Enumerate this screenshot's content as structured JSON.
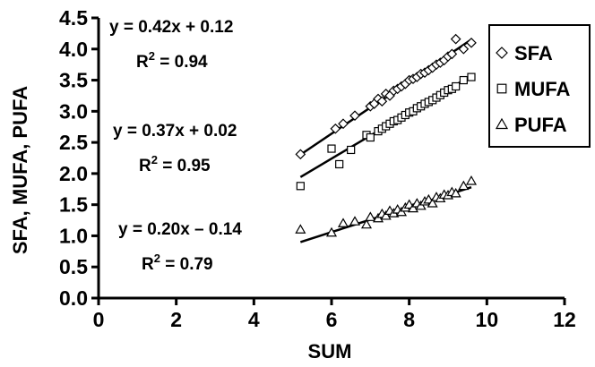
{
  "chart_data": {
    "type": "scatter",
    "title": "",
    "xlabel": "SUM",
    "ylabel": "SFA, MUFA, PUFA",
    "xlim": [
      0,
      12
    ],
    "ylim": [
      0,
      4.5
    ],
    "xticks": [
      0,
      2,
      4,
      6,
      8,
      10,
      12
    ],
    "yticks": [
      0.0,
      0.5,
      1.0,
      1.5,
      2.0,
      2.5,
      3.0,
      3.5,
      4.0,
      4.5
    ],
    "xtick_labels": [
      "0",
      "2",
      "4",
      "6",
      "8",
      "10",
      "12"
    ],
    "ytick_labels": [
      "0.0",
      "0.5",
      "1.0",
      "1.5",
      "2.0",
      "2.5",
      "3.0",
      "3.5",
      "4.0",
      "4.5"
    ],
    "grid": false,
    "legend_position": "top-right",
    "series": [
      {
        "name": "SFA",
        "marker": "diamond",
        "fit": {
          "slope": 0.42,
          "intercept": 0.12,
          "x_range": [
            5.2,
            9.6
          ]
        },
        "equation": "y = 0.42x + 0.12",
        "r2_label": "R",
        "r2_sup": "2",
        "r2_value": " = 0.94",
        "points": [
          [
            5.2,
            2.31
          ],
          [
            6.1,
            2.72
          ],
          [
            6.3,
            2.8
          ],
          [
            6.6,
            2.93
          ],
          [
            7.0,
            3.08
          ],
          [
            7.1,
            3.12
          ],
          [
            7.2,
            3.2
          ],
          [
            7.3,
            3.16
          ],
          [
            7.4,
            3.28
          ],
          [
            7.5,
            3.25
          ],
          [
            7.6,
            3.33
          ],
          [
            7.7,
            3.36
          ],
          [
            7.8,
            3.4
          ],
          [
            7.9,
            3.44
          ],
          [
            8.0,
            3.5
          ],
          [
            8.1,
            3.52
          ],
          [
            8.2,
            3.55
          ],
          [
            8.3,
            3.6
          ],
          [
            8.4,
            3.62
          ],
          [
            8.5,
            3.66
          ],
          [
            8.6,
            3.7
          ],
          [
            8.7,
            3.75
          ],
          [
            8.8,
            3.78
          ],
          [
            8.9,
            3.82
          ],
          [
            9.0,
            3.88
          ],
          [
            9.1,
            3.92
          ],
          [
            9.2,
            4.16
          ],
          [
            9.4,
            4.0
          ],
          [
            9.6,
            4.1
          ]
        ]
      },
      {
        "name": "MUFA",
        "marker": "square",
        "fit": {
          "slope": 0.37,
          "intercept": 0.02,
          "x_range": [
            5.2,
            9.6
          ]
        },
        "equation": "y = 0.37x + 0.02",
        "r2_label": "R",
        "r2_sup": "2",
        "r2_value": " = 0.95",
        "points": [
          [
            5.2,
            1.8
          ],
          [
            6.0,
            2.4
          ],
          [
            6.2,
            2.15
          ],
          [
            6.5,
            2.38
          ],
          [
            6.9,
            2.62
          ],
          [
            7.0,
            2.58
          ],
          [
            7.2,
            2.68
          ],
          [
            7.3,
            2.72
          ],
          [
            7.4,
            2.76
          ],
          [
            7.5,
            2.8
          ],
          [
            7.6,
            2.84
          ],
          [
            7.7,
            2.86
          ],
          [
            7.8,
            2.9
          ],
          [
            7.9,
            2.94
          ],
          [
            8.0,
            2.98
          ],
          [
            8.1,
            3.0
          ],
          [
            8.2,
            3.05
          ],
          [
            8.3,
            3.08
          ],
          [
            8.4,
            3.12
          ],
          [
            8.5,
            3.15
          ],
          [
            8.6,
            3.18
          ],
          [
            8.7,
            3.22
          ],
          [
            8.8,
            3.26
          ],
          [
            8.9,
            3.3
          ],
          [
            9.0,
            3.34
          ],
          [
            9.1,
            3.36
          ],
          [
            9.2,
            3.4
          ],
          [
            9.4,
            3.5
          ],
          [
            9.6,
            3.55
          ]
        ]
      },
      {
        "name": "PUFA",
        "marker": "triangle",
        "fit": {
          "slope": 0.2,
          "intercept": -0.14,
          "x_range": [
            5.2,
            9.6
          ]
        },
        "equation": "y = 0.20x – 0.14",
        "r2_label": "R",
        "r2_sup": "2",
        "r2_value": " = 0.79",
        "points": [
          [
            5.2,
            1.1
          ],
          [
            6.0,
            1.05
          ],
          [
            6.3,
            1.2
          ],
          [
            6.6,
            1.23
          ],
          [
            6.9,
            1.18
          ],
          [
            7.0,
            1.3
          ],
          [
            7.2,
            1.28
          ],
          [
            7.3,
            1.35
          ],
          [
            7.4,
            1.32
          ],
          [
            7.5,
            1.4
          ],
          [
            7.6,
            1.36
          ],
          [
            7.7,
            1.42
          ],
          [
            7.8,
            1.38
          ],
          [
            7.9,
            1.45
          ],
          [
            8.0,
            1.5
          ],
          [
            8.1,
            1.44
          ],
          [
            8.2,
            1.52
          ],
          [
            8.3,
            1.48
          ],
          [
            8.4,
            1.55
          ],
          [
            8.5,
            1.58
          ],
          [
            8.6,
            1.52
          ],
          [
            8.7,
            1.62
          ],
          [
            8.8,
            1.6
          ],
          [
            8.9,
            1.66
          ],
          [
            9.0,
            1.65
          ],
          [
            9.1,
            1.7
          ],
          [
            9.2,
            1.68
          ],
          [
            9.4,
            1.8
          ],
          [
            9.6,
            1.88
          ]
        ]
      }
    ]
  }
}
